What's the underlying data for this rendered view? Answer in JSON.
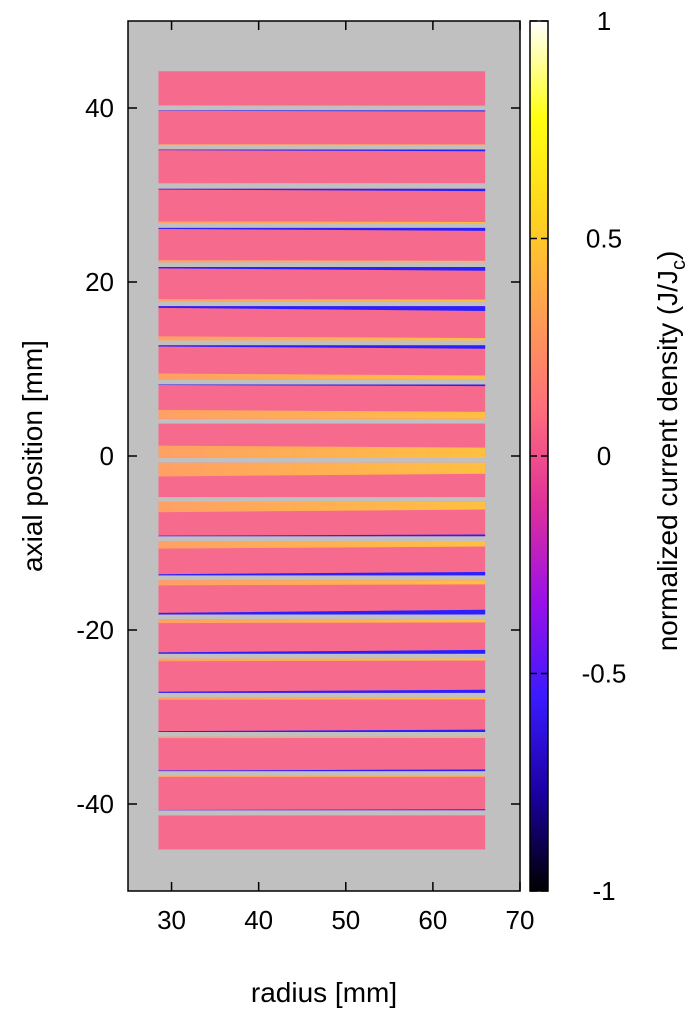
{
  "chart_data": {
    "type": "heatmap",
    "xlabel": "radius [mm]",
    "ylabel": "axial position [mm]",
    "xlim": [
      25,
      70
    ],
    "ylim": [
      -50,
      50
    ],
    "xticks": [
      "30",
      "40",
      "50",
      "60",
      "70"
    ],
    "yticks": [
      "40",
      "20",
      "0",
      "-20",
      "-40"
    ],
    "colorbar": {
      "label_main": "normalized current density (J/J",
      "label_sub": "c",
      "label_close": ")",
      "range": [
        -1,
        1
      ],
      "ticks": [
        "1",
        "0.5",
        "0",
        "-0.5",
        "-1"
      ],
      "palette": [
        "#000000",
        "#1a00a0",
        "#3a1aff",
        "#9a10e8",
        "#e0309a",
        "#ff6f7a",
        "#ffa050",
        "#ffd41e",
        "#ffff10",
        "#ffffff"
      ]
    },
    "background_color": "#c0c0c0",
    "winding_region": {
      "r_inner": 28.5,
      "r_outer": 66,
      "z_min": -44.5,
      "z_max": 44.5
    },
    "pancakes": {
      "count": 20,
      "z_centers": [
        42.25,
        37.75,
        33.25,
        28.75,
        24.25,
        19.75,
        15.25,
        10.75,
        6.25,
        1.75,
        -2.75,
        -7.25,
        -11.75,
        -16.25,
        -20.75,
        -25.25,
        -29.75,
        -34.25,
        -38.75,
        -43.25
      ],
      "gap_mm": 0.5
    },
    "bands": {
      "unit": "fraction of pancake height",
      "outer_thickness_inner_edge": [
        0.01,
        0.02,
        0.03,
        0.05,
        0.06,
        0.07,
        0.12,
        0.18,
        0.26,
        0.36,
        0.4,
        0.3,
        0.22,
        0.15,
        0.11,
        0.08,
        0.06,
        0.04,
        0.03,
        0.02
      ],
      "outer_thickness_outer_edge": [
        0.0,
        0.01,
        0.02,
        0.03,
        0.04,
        0.05,
        0.07,
        0.12,
        0.2,
        0.3,
        0.32,
        0.22,
        0.16,
        0.12,
        0.09,
        0.06,
        0.05,
        0.03,
        0.02,
        0.01
      ],
      "negative_edge_thickness": [
        0.0,
        0.03,
        0.05,
        0.07,
        0.09,
        0.11,
        0.14,
        0.1,
        0.05,
        0.0,
        0.0,
        0.05,
        0.1,
        0.14,
        0.11,
        0.09,
        0.07,
        0.05,
        0.03,
        0.0
      ],
      "colors": {
        "core": "#f66a8e",
        "outer": "#ffa064",
        "outer_peak": "#ffc040",
        "negative": "#2a20ff",
        "negative_peak": "#2000c8"
      }
    }
  }
}
